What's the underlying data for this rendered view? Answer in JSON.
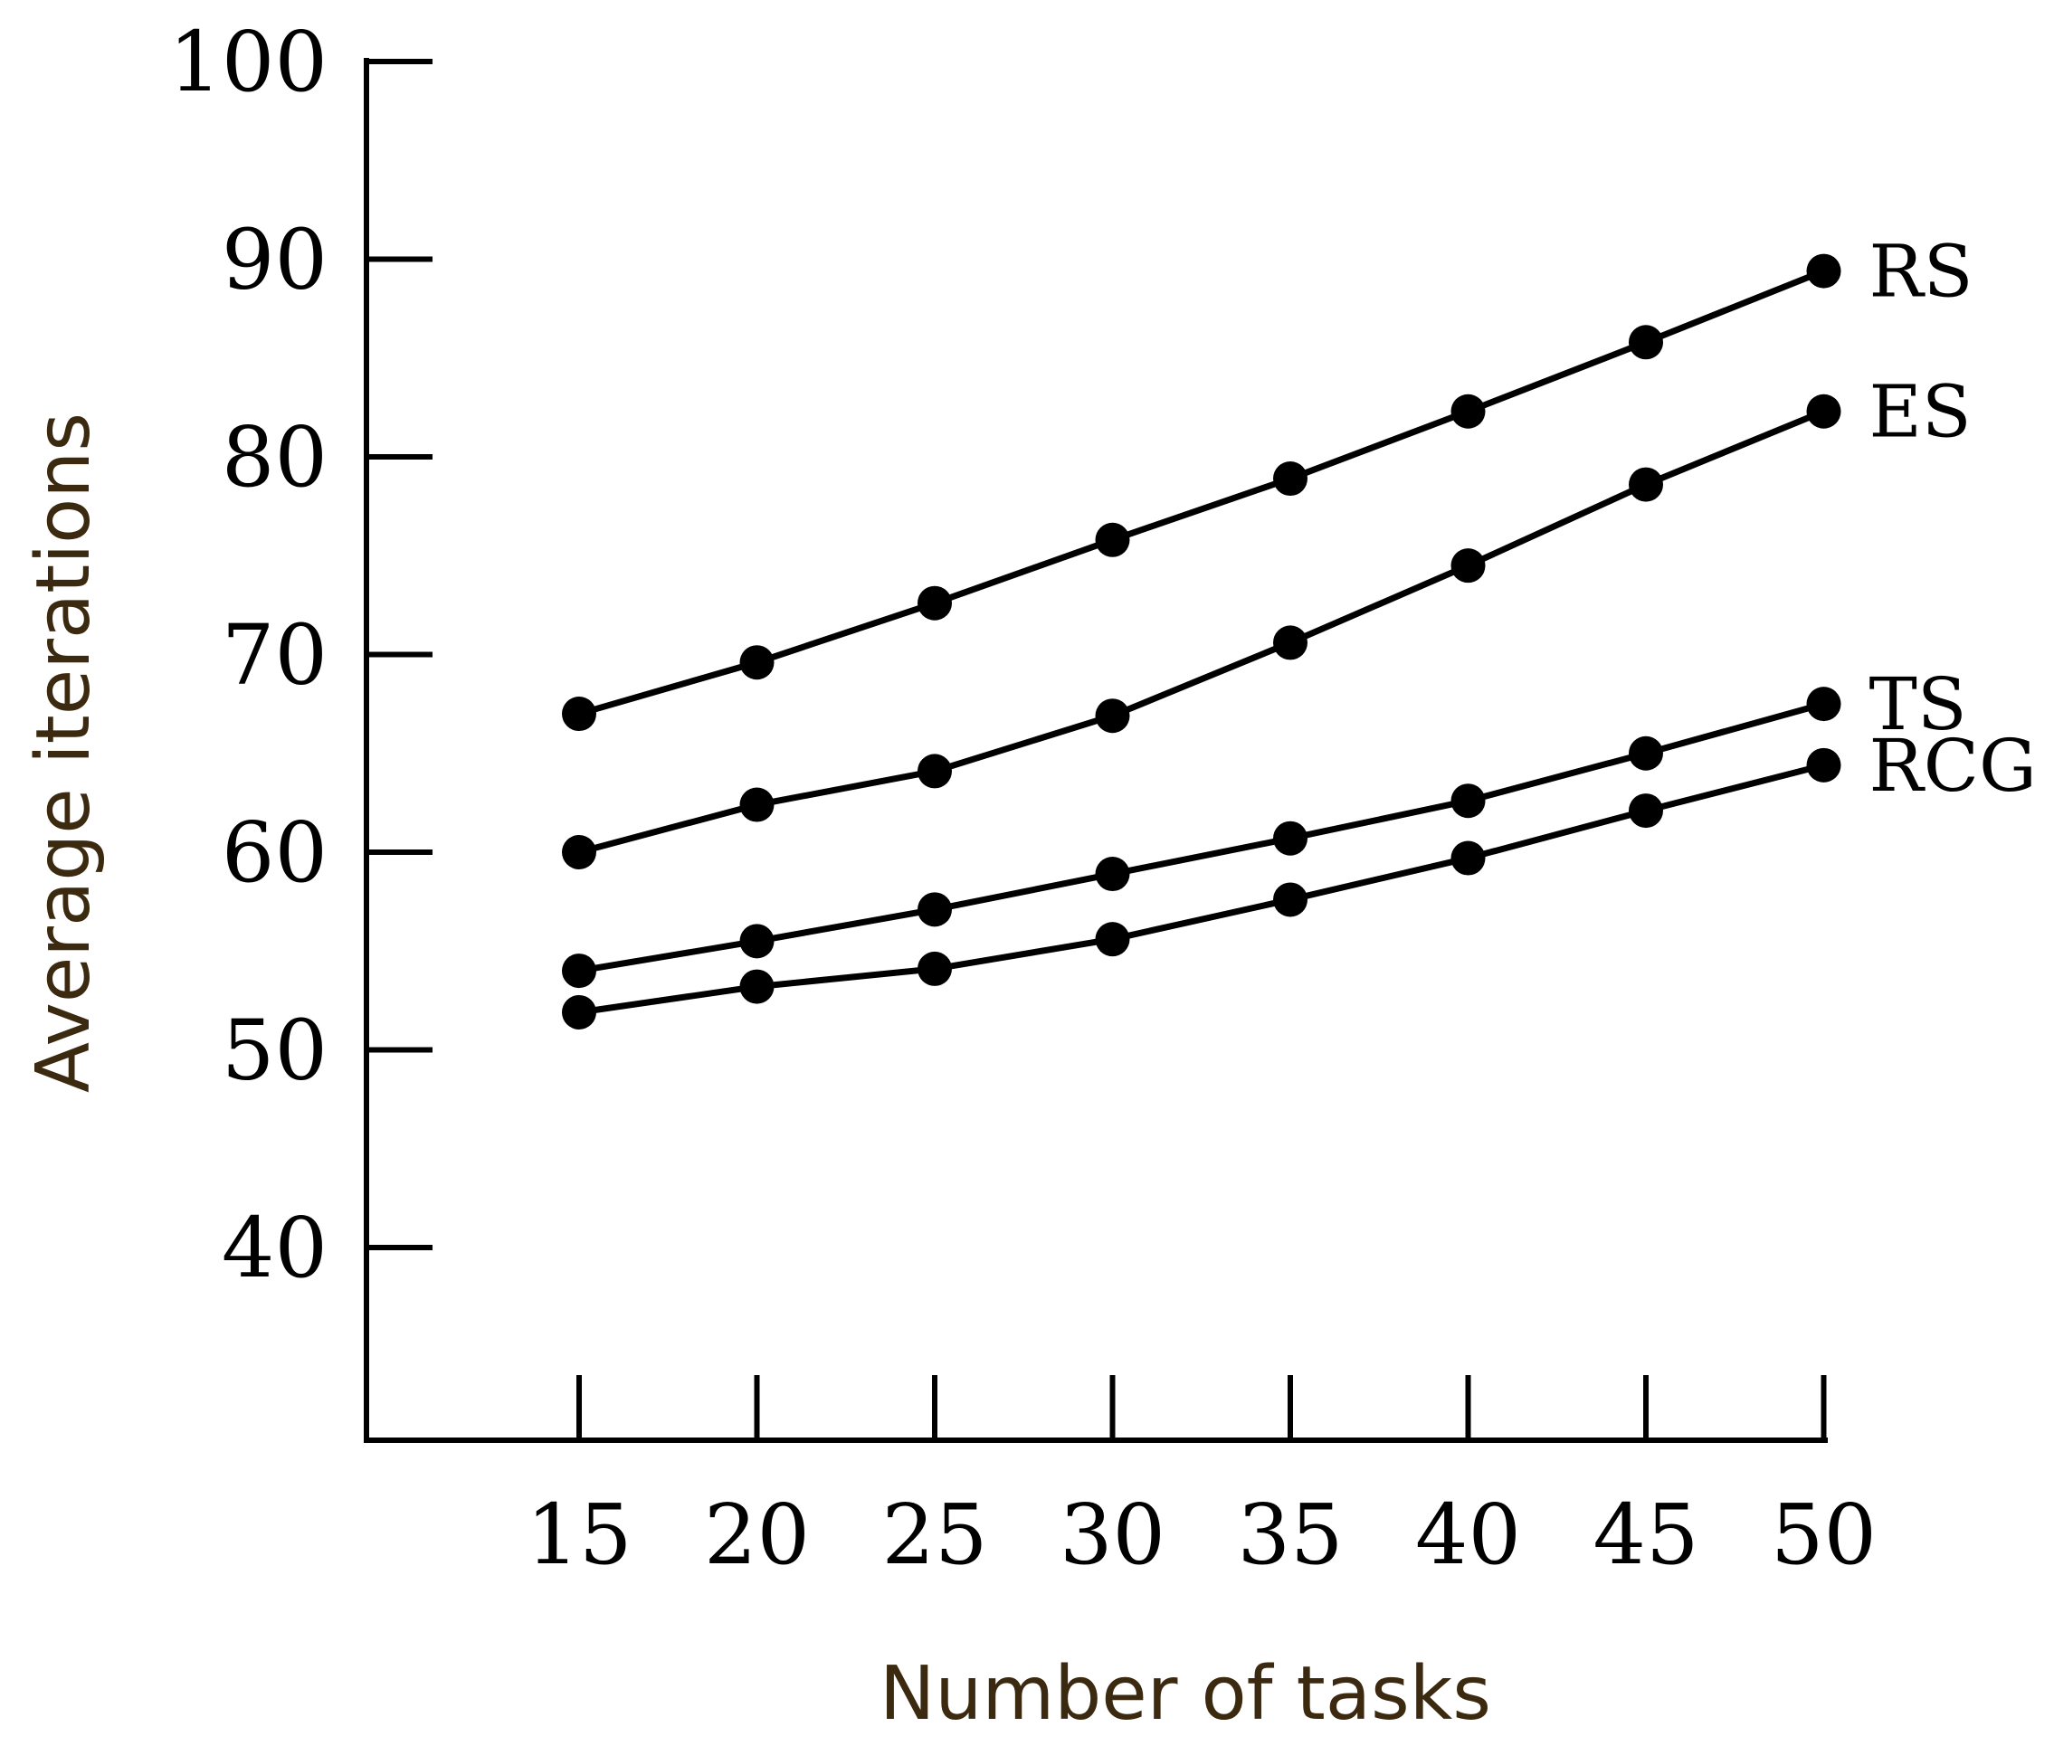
{
  "chart_data": {
    "type": "line",
    "xlabel": "Number of tasks",
    "ylabel": "Average iterations",
    "x": [
      15,
      20,
      25,
      30,
      35,
      40,
      45,
      50
    ],
    "xticks": [
      "15",
      "20",
      "25",
      "30",
      "35",
      "40",
      "45",
      "50"
    ],
    "yticks": [
      "40",
      "50",
      "60",
      "70",
      "80",
      "90",
      "100"
    ],
    "ytick_values": [
      40,
      50,
      60,
      70,
      80,
      90,
      100
    ],
    "ylim": [
      30,
      100
    ],
    "grid": false,
    "legend": "inline labels at line ends",
    "series": [
      {
        "name": "RS",
        "values": [
          67.0,
          69.6,
          72.6,
          75.8,
          78.9,
          82.3,
          85.8,
          89.4
        ]
      },
      {
        "name": "ES",
        "values": [
          60.0,
          62.4,
          64.1,
          66.9,
          70.6,
          74.5,
          78.6,
          82.3
        ]
      },
      {
        "name": "TS",
        "values": [
          54.0,
          55.5,
          57.1,
          58.9,
          60.7,
          62.6,
          65.0,
          67.5
        ]
      },
      {
        "name": "RCG",
        "values": [
          51.9,
          53.2,
          54.1,
          55.6,
          57.6,
          59.7,
          62.1,
          64.4
        ]
      }
    ]
  }
}
